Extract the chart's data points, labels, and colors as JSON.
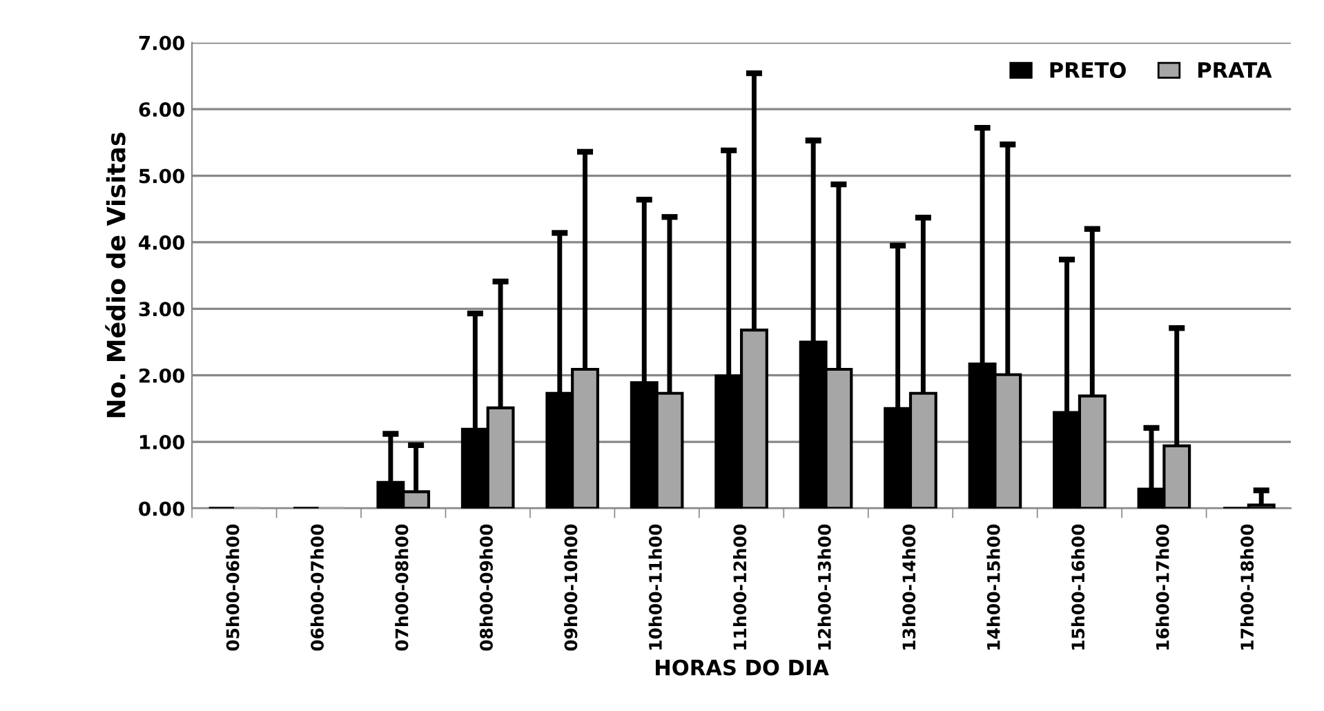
{
  "chart_data": {
    "type": "bar",
    "xlabel": "HORAS DO DIA",
    "ylabel": "No. Médio de Visitas",
    "categories": [
      "05h00-06h00",
      "06h00-07h00",
      "07h00-08h00",
      "08h00-09h00",
      "09h00-10h00",
      "10h00-11h00",
      "11h00-12h00",
      "12h00-13h00",
      "13h00-14h00",
      "14h00-15h00",
      "15h00-16h00",
      "16h00-17h00",
      "17h00-18h00"
    ],
    "series": [
      {
        "name": "PRETO",
        "color": "#000000",
        "values": [
          0,
          0,
          0.39,
          1.19,
          1.73,
          1.89,
          1.99,
          2.5,
          1.5,
          2.17,
          1.44,
          0.29,
          0
        ],
        "errors": [
          null,
          null,
          [
            0.39,
            1.12
          ],
          [
            1.19,
            2.93
          ],
          [
            1.73,
            4.14
          ],
          [
            1.89,
            4.64
          ],
          [
            1.99,
            5.38
          ],
          [
            2.5,
            5.53
          ],
          [
            1.5,
            3.95
          ],
          [
            2.17,
            5.72
          ],
          [
            1.44,
            3.74
          ],
          [
            0.29,
            1.21
          ],
          null
        ]
      },
      {
        "name": "PRATA",
        "color": "#a6a6a6",
        "values": [
          0,
          0,
          0.25,
          1.51,
          2.09,
          1.73,
          2.68,
          2.09,
          1.73,
          2.01,
          1.69,
          0.94,
          0.05
        ],
        "errors": [
          null,
          null,
          [
            0.25,
            0.95
          ],
          [
            1.51,
            3.41
          ],
          [
            2.09,
            5.36
          ],
          [
            1.73,
            4.38
          ],
          [
            2.68,
            6.54
          ],
          [
            2.09,
            4.87
          ],
          [
            1.73,
            4.37
          ],
          [
            2.01,
            5.47
          ],
          [
            1.69,
            4.2
          ],
          [
            0.94,
            2.71
          ],
          [
            0.05,
            0.27
          ]
        ]
      }
    ],
    "ylim": [
      0,
      7
    ],
    "yticks": [
      {
        "value": 0,
        "label": "0.00"
      },
      {
        "value": 1,
        "label": "1.00"
      },
      {
        "value": 2,
        "label": "2.00"
      },
      {
        "value": 3,
        "label": "3.00"
      },
      {
        "value": 4,
        "label": "4.00"
      },
      {
        "value": 5,
        "label": "5.00"
      },
      {
        "value": 6,
        "label": "6.00"
      },
      {
        "value": 7,
        "label": "7.00"
      }
    ],
    "grid": "y",
    "legend": "top right"
  }
}
